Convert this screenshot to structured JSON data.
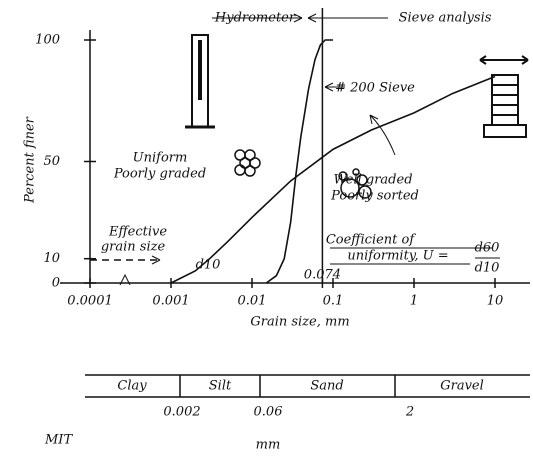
{
  "chart_data": {
    "type": "line",
    "x_label": "Grain size, mm",
    "y_label": "Percent finer",
    "log_x": true,
    "xlim": [
      0.0001,
      10
    ],
    "xticks": [
      0.0001,
      0.001,
      0.01,
      0.074,
      0.1,
      1,
      10
    ],
    "ylim": [
      0,
      100
    ],
    "yticks": [
      0,
      10,
      50,
      100
    ],
    "series": [
      {
        "color": "#111",
        "x": [
          0.015,
          0.02,
          0.025,
          0.03,
          0.035,
          0.04,
          0.05,
          0.06,
          0.07,
          0.08,
          0.1
        ],
        "values": [
          0,
          3,
          10,
          25,
          45,
          60,
          80,
          92,
          98,
          100,
          100
        ]
      },
      {
        "color": "#111",
        "x": [
          0.001,
          0.002,
          0.003,
          0.005,
          0.01,
          0.03,
          0.1,
          0.3,
          1,
          3,
          10
        ],
        "values": [
          0,
          5,
          10,
          17,
          27,
          42,
          55,
          63,
          70,
          78,
          85
        ]
      }
    ],
    "annotations": {
      "hydrometer": "Hydrometer",
      "sieve": "Sieve analysis",
      "no200": "# 200 Sieve",
      "uniform1": "Uniform",
      "uniform2": "Poorly graded",
      "well1": "Well graded",
      "well2": "Poorly sorted",
      "eff1": "Effective",
      "eff2": "grain size",
      "d10": "d10",
      "coef1": "Coefficient of",
      "coef2": "uniformity, U =",
      "num": "d60",
      "den": "d10"
    },
    "scale": {
      "name": "MIT",
      "unit": "mm",
      "classes": [
        "Clay",
        "Silt",
        "Sand",
        "Gravel"
      ],
      "limits": [
        "0.002",
        "0.06",
        "2"
      ]
    }
  }
}
